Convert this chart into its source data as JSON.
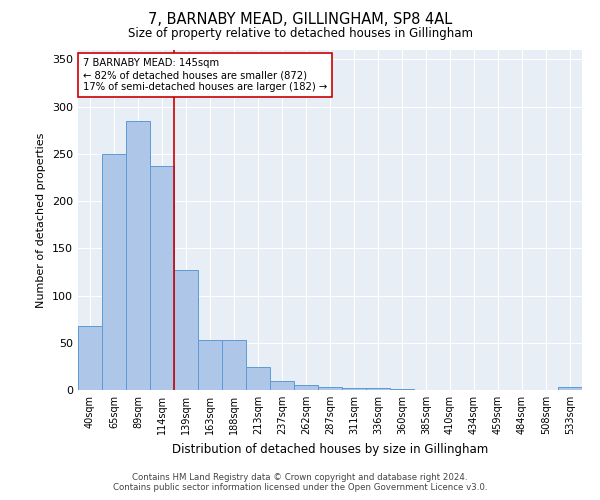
{
  "title": "7, BARNABY MEAD, GILLINGHAM, SP8 4AL",
  "subtitle": "Size of property relative to detached houses in Gillingham",
  "xlabel": "Distribution of detached houses by size in Gillingham",
  "ylabel": "Number of detached properties",
  "categories": [
    "40sqm",
    "65sqm",
    "89sqm",
    "114sqm",
    "139sqm",
    "163sqm",
    "188sqm",
    "213sqm",
    "237sqm",
    "262sqm",
    "287sqm",
    "311sqm",
    "336sqm",
    "360sqm",
    "385sqm",
    "410sqm",
    "434sqm",
    "459sqm",
    "484sqm",
    "508sqm",
    "533sqm"
  ],
  "values": [
    68,
    250,
    285,
    237,
    127,
    53,
    53,
    24,
    10,
    5,
    3,
    2,
    2,
    1,
    0,
    0,
    0,
    0,
    0,
    0,
    3
  ],
  "bar_color": "#aec6e8",
  "bar_edge_color": "#5b9bd5",
  "vline_color": "#cc0000",
  "vline_pos": 3.5,
  "annotation_text": "7 BARNABY MEAD: 145sqm\n← 82% of detached houses are smaller (872)\n17% of semi-detached houses are larger (182) →",
  "annotation_box_color": "#ffffff",
  "annotation_box_edge_color": "#cc0000",
  "ylim": [
    0,
    360
  ],
  "yticks": [
    0,
    50,
    100,
    150,
    200,
    250,
    300,
    350
  ],
  "background_color": "#e8eef5",
  "footer_line1": "Contains HM Land Registry data © Crown copyright and database right 2024.",
  "footer_line2": "Contains public sector information licensed under the Open Government Licence v3.0."
}
